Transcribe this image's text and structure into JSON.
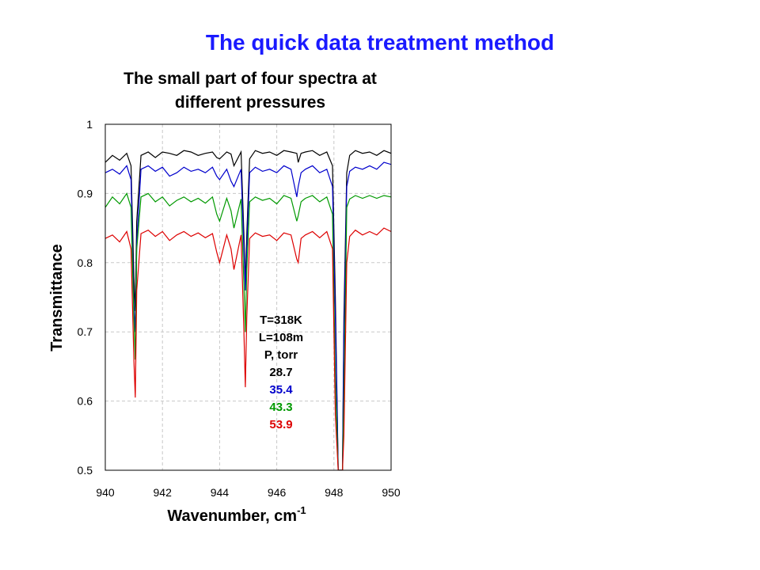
{
  "slide": {
    "title": "The quick data treatment method",
    "title_color": "#1a1aff"
  },
  "chart_data": {
    "type": "line",
    "title": "The small part of four spectra at different pressures",
    "title_lines": [
      "The small part of four spectra at",
      "different pressures"
    ],
    "xlabel": "Wavenumber, cm",
    "xlabel_superscript": "-1",
    "ylabel": "Transmittance",
    "xlim": [
      940,
      950
    ],
    "ylim": [
      0.5,
      1
    ],
    "x_ticks": [
      "940",
      "942",
      "944",
      "946",
      "948",
      "950"
    ],
    "y_ticks": [
      "0.5",
      "0.6",
      "0.7",
      "0.8",
      "0.9",
      "1"
    ],
    "grid": true,
    "annotation": [
      "T=318K",
      "L=108m",
      "P, torr"
    ],
    "x": [
      940.0,
      940.25,
      940.5,
      940.75,
      940.9,
      941.0,
      941.05,
      941.1,
      941.25,
      941.5,
      941.75,
      942.0,
      942.25,
      942.5,
      942.75,
      943.0,
      943.25,
      943.5,
      943.75,
      943.9,
      944.0,
      944.25,
      944.4,
      944.5,
      944.75,
      944.85,
      944.9,
      944.95,
      945.05,
      945.25,
      945.5,
      945.75,
      946.0,
      946.25,
      946.5,
      946.7,
      946.75,
      946.85,
      947.0,
      947.25,
      947.5,
      947.75,
      947.95,
      948.05,
      948.15,
      948.25,
      948.3,
      948.35,
      948.45,
      948.55,
      948.75,
      949.0,
      949.25,
      949.5,
      949.75,
      950.0
    ],
    "series": [
      {
        "name": "28.7",
        "color": "#000000",
        "values": [
          0.945,
          0.955,
          0.948,
          0.958,
          0.94,
          0.78,
          0.73,
          0.86,
          0.955,
          0.96,
          0.952,
          0.96,
          0.958,
          0.955,
          0.962,
          0.96,
          0.955,
          0.958,
          0.96,
          0.952,
          0.95,
          0.96,
          0.957,
          0.94,
          0.96,
          0.84,
          0.77,
          0.84,
          0.95,
          0.962,
          0.958,
          0.96,
          0.955,
          0.962,
          0.96,
          0.958,
          0.945,
          0.958,
          0.96,
          0.962,
          0.955,
          0.96,
          0.94,
          0.75,
          0.5,
          0.5,
          0.5,
          0.72,
          0.93,
          0.955,
          0.962,
          0.958,
          0.96,
          0.955,
          0.962,
          0.958
        ]
      },
      {
        "name": "35.4",
        "color": "#0000cc",
        "values": [
          0.93,
          0.935,
          0.928,
          0.94,
          0.92,
          0.74,
          0.7,
          0.83,
          0.935,
          0.94,
          0.932,
          0.938,
          0.925,
          0.93,
          0.938,
          0.932,
          0.935,
          0.93,
          0.938,
          0.925,
          0.92,
          0.935,
          0.918,
          0.91,
          0.935,
          0.82,
          0.76,
          0.82,
          0.93,
          0.938,
          0.932,
          0.935,
          0.93,
          0.94,
          0.935,
          0.895,
          0.91,
          0.93,
          0.935,
          0.94,
          0.93,
          0.935,
          0.91,
          0.72,
          0.5,
          0.5,
          0.5,
          0.69,
          0.91,
          0.932,
          0.938,
          0.935,
          0.94,
          0.935,
          0.945,
          0.942
        ]
      },
      {
        "name": "43.3",
        "color": "#009900",
        "values": [
          0.88,
          0.895,
          0.885,
          0.9,
          0.88,
          0.72,
          0.66,
          0.82,
          0.895,
          0.9,
          0.888,
          0.895,
          0.882,
          0.89,
          0.895,
          0.888,
          0.893,
          0.886,
          0.895,
          0.87,
          0.86,
          0.893,
          0.875,
          0.85,
          0.892,
          0.77,
          0.7,
          0.79,
          0.888,
          0.895,
          0.89,
          0.893,
          0.885,
          0.897,
          0.893,
          0.86,
          0.868,
          0.888,
          0.893,
          0.897,
          0.888,
          0.895,
          0.87,
          0.63,
          0.5,
          0.5,
          0.5,
          0.6,
          0.88,
          0.892,
          0.897,
          0.893,
          0.897,
          0.893,
          0.897,
          0.895
        ]
      },
      {
        "name": "53.9",
        "color": "#dd0000",
        "values": [
          0.835,
          0.84,
          0.83,
          0.845,
          0.82,
          0.66,
          0.605,
          0.76,
          0.842,
          0.847,
          0.838,
          0.845,
          0.832,
          0.84,
          0.845,
          0.838,
          0.843,
          0.836,
          0.842,
          0.815,
          0.8,
          0.84,
          0.82,
          0.79,
          0.84,
          0.7,
          0.62,
          0.72,
          0.835,
          0.843,
          0.838,
          0.84,
          0.832,
          0.843,
          0.84,
          0.805,
          0.8,
          0.835,
          0.84,
          0.845,
          0.836,
          0.845,
          0.82,
          0.58,
          0.5,
          0.5,
          0.5,
          0.55,
          0.8,
          0.838,
          0.847,
          0.84,
          0.845,
          0.84,
          0.85,
          0.845
        ]
      }
    ]
  }
}
